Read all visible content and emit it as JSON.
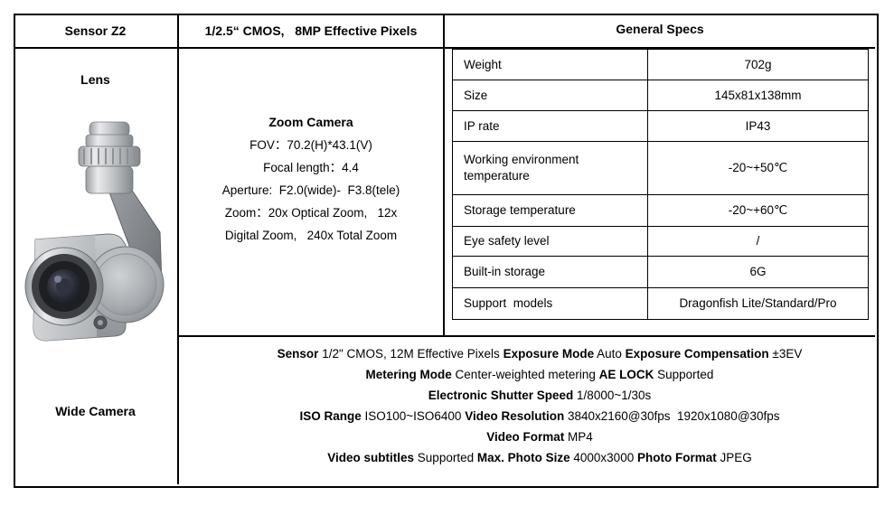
{
  "header": {
    "sensor_title": "Sensor Z2",
    "sensor_spec": "1/2.5“ CMOS,   8MP Effective Pixels",
    "general_specs_title": "General Specs"
  },
  "left_panel": {
    "lens_label": "Lens",
    "wide_camera_label": "Wide Camera",
    "camera_image_alt": "gimbal-zoom-camera-product-photo"
  },
  "zoom_camera": {
    "title": "Zoom Camera",
    "lines": [
      "FOV：70.2(H)*43.1(V)",
      "Focal length：4.4",
      "Aperture:  F2.0(wide)-  F3.8(tele)",
      "Zoom：20x Optical Zoom,   12x",
      "Digital Zoom,   240x Total Zoom"
    ]
  },
  "general_specs": {
    "rows": [
      {
        "label": "Weight",
        "value": "702g"
      },
      {
        "label": "Size",
        "value": "145x81x138mm"
      },
      {
        "label": "IP rate",
        "value": "IP43"
      },
      {
        "label": "Working environment temperature",
        "value": "-20~+50℃"
      },
      {
        "label": "Storage temperature",
        "value": "-20~+60℃"
      },
      {
        "label": "Eye safety level",
        "value": "/"
      },
      {
        "label": "Built-in storage",
        "value": "6G"
      },
      {
        "label": "Support  models",
        "value": "Dragonfish Lite/Standard/Pro"
      }
    ]
  },
  "wide_camera_specs": {
    "lines": [
      [
        {
          "b": true,
          "t": "Sensor"
        },
        {
          "b": false,
          "t": " 1/2\" CMOS, 12M Effective Pixels "
        },
        {
          "b": true,
          "t": "Exposure Mode"
        },
        {
          "b": false,
          "t": " Auto "
        },
        {
          "b": true,
          "t": "Exposure Compensation"
        },
        {
          "b": false,
          "t": " ±3EV"
        }
      ],
      [
        {
          "b": true,
          "t": "Metering Mode"
        },
        {
          "b": false,
          "t": " Center-weighted metering "
        },
        {
          "b": true,
          "t": "AE LOCK"
        },
        {
          "b": false,
          "t": " Supported"
        }
      ],
      [
        {
          "b": true,
          "t": "Electronic Shutter Speed"
        },
        {
          "b": false,
          "t": " 1/8000~1/30s"
        }
      ],
      [
        {
          "b": true,
          "t": "ISO Range"
        },
        {
          "b": false,
          "t": " ISO100~ISO6400 "
        },
        {
          "b": true,
          "t": "Video Resolution"
        },
        {
          "b": false,
          "t": " 3840x2160@30fps  1920x1080@30fps"
        }
      ],
      [
        {
          "b": true,
          "t": "Video Format"
        },
        {
          "b": false,
          "t": " MP4"
        }
      ],
      [
        {
          "b": true,
          "t": "Video subtitles"
        },
        {
          "b": false,
          "t": " Supported "
        },
        {
          "b": true,
          "t": "Max. Photo Size"
        },
        {
          "b": false,
          "t": " 4000x3000 "
        },
        {
          "b": true,
          "t": "Photo Format"
        },
        {
          "b": false,
          "t": " JPEG"
        }
      ]
    ]
  },
  "colors": {
    "border": "#000000",
    "text": "#000000",
    "background": "#ffffff",
    "camera_metal_light": "#e8e9ea",
    "camera_metal_mid": "#b0b4b8",
    "camera_metal_dark": "#7c8084",
    "camera_lens_dark": "#1d1f22"
  }
}
